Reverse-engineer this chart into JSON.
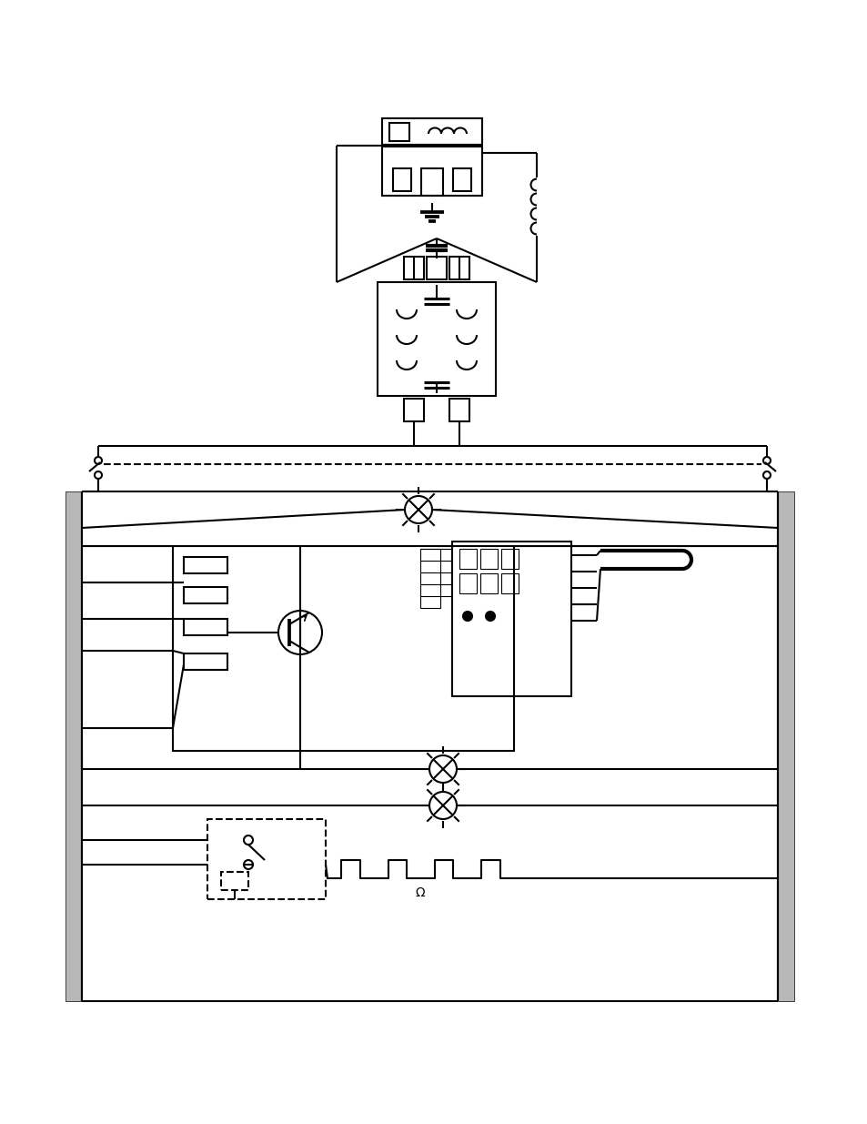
{
  "bg_color": "#ffffff",
  "lc": "#000000",
  "lw": 1.5,
  "fig_width": 9.54,
  "fig_height": 12.35,
  "dpi": 100
}
